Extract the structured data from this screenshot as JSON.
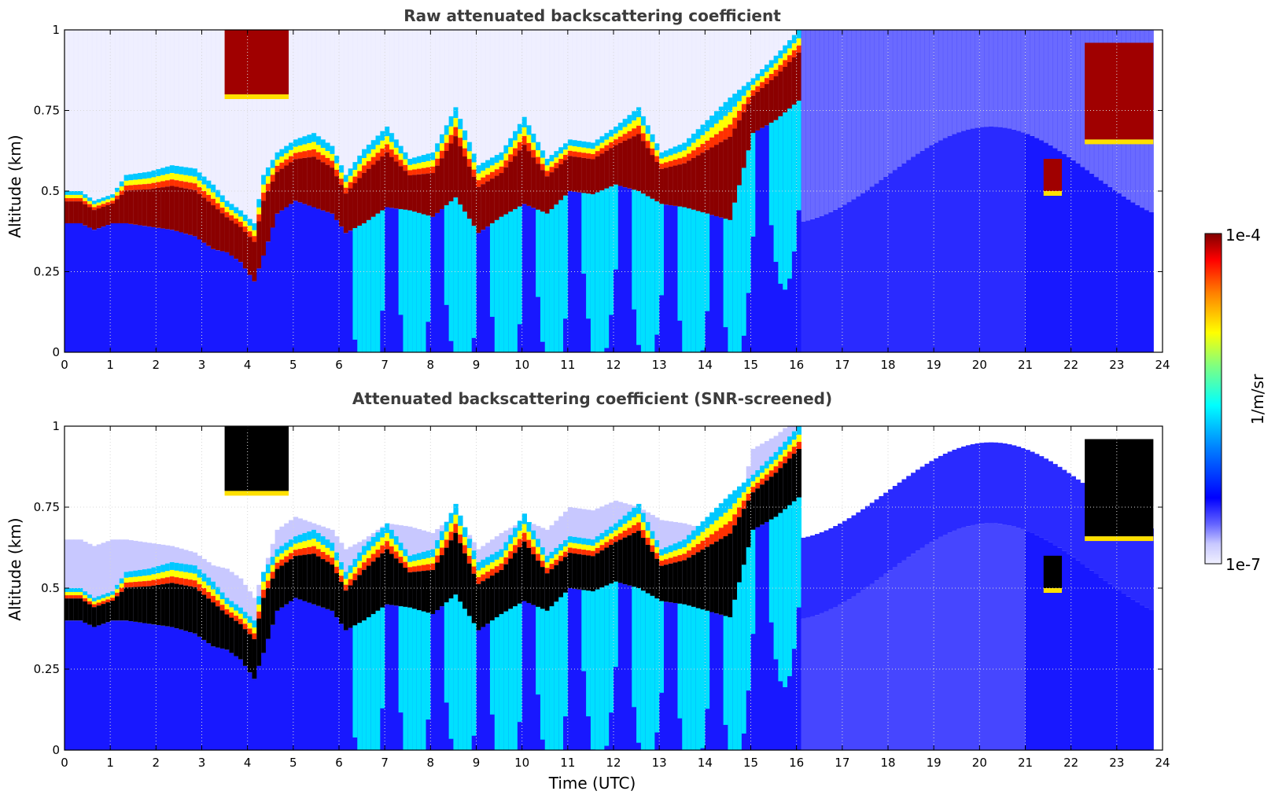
{
  "chart_data": [
    {
      "type": "heatmap",
      "title": "Raw attenuated backscattering coefficient",
      "xlabel": "",
      "ylabel": "Altitude (km)",
      "xlim": [
        0,
        24
      ],
      "ylim": [
        0,
        1
      ],
      "xticks": [
        "0",
        "1",
        "2",
        "3",
        "4",
        "5",
        "6",
        "7",
        "8",
        "9",
        "10",
        "11",
        "12",
        "13",
        "14",
        "15",
        "16",
        "17",
        "18",
        "19",
        "20",
        "21",
        "22",
        "23",
        "24"
      ],
      "yticks": [
        "0",
        "0.25",
        "0.5",
        "0.75",
        "1"
      ],
      "grid": true,
      "screened": false,
      "cloud_layer": {
        "time_utc": [
          0.3,
          0.6,
          1.0,
          1.3,
          1.8,
          2.3,
          2.8,
          3.2,
          3.5,
          3.8,
          4.1,
          4.3,
          4.6,
          5.0,
          5.4,
          5.8,
          6.1,
          6.5,
          7.0,
          7.5,
          8.0,
          8.5,
          9.0,
          9.5,
          10.0,
          10.5,
          11.0,
          11.5,
          12.0,
          12.5,
          13.0,
          13.5,
          14.0,
          14.5,
          15.0,
          15.5,
          16.0
        ],
        "base_km": [
          0.4,
          0.38,
          0.4,
          0.4,
          0.39,
          0.38,
          0.36,
          0.32,
          0.31,
          0.28,
          0.22,
          0.3,
          0.43,
          0.47,
          0.45,
          0.43,
          0.37,
          0.4,
          0.45,
          0.44,
          0.42,
          0.48,
          0.37,
          0.42,
          0.46,
          0.43,
          0.5,
          0.49,
          0.52,
          0.5,
          0.46,
          0.45,
          0.43,
          0.41,
          0.68,
          0.72,
          0.78
        ],
        "top_km": [
          0.5,
          0.47,
          0.49,
          0.55,
          0.56,
          0.58,
          0.57,
          0.52,
          0.47,
          0.44,
          0.4,
          0.55,
          0.62,
          0.66,
          0.68,
          0.64,
          0.55,
          0.63,
          0.7,
          0.6,
          0.62,
          0.76,
          0.58,
          0.62,
          0.73,
          0.6,
          0.66,
          0.65,
          0.7,
          0.76,
          0.62,
          0.65,
          0.72,
          0.79,
          0.85,
          0.92,
          1.0
        ]
      },
      "upper_layers": [
        {
          "start": 3.5,
          "end": 4.9,
          "base_km": 0.8,
          "top_km": 1.0
        },
        {
          "start": 21.4,
          "end": 21.8,
          "base_km": 0.5,
          "top_km": 0.6
        },
        {
          "start": 22.3,
          "end": 23.8,
          "base_km": 0.66,
          "top_km": 0.96
        }
      ],
      "data_end_utc": 23.75
    },
    {
      "type": "heatmap",
      "title": "Attenuated backscattering coefficient (SNR-screened)",
      "xlabel": "Time (UTC)",
      "ylabel": "Altitude (km)",
      "xlim": [
        0,
        24
      ],
      "ylim": [
        0,
        1
      ],
      "xticks": [
        "0",
        "1",
        "2",
        "3",
        "4",
        "5",
        "6",
        "7",
        "8",
        "9",
        "10",
        "11",
        "12",
        "13",
        "14",
        "15",
        "16",
        "17",
        "18",
        "19",
        "20",
        "21",
        "22",
        "23",
        "24"
      ],
      "yticks": [
        "0",
        "0.25",
        "0.5",
        "0.75",
        "1"
      ],
      "grid": true,
      "screened": true,
      "cloud_layer_ref": 0,
      "data_end_utc": 23.75
    }
  ],
  "colorbar": {
    "label": "1/m/sr",
    "min_label": "1e-7",
    "max_label": "1e-4",
    "colormap": "jet",
    "low_color": "#e8e8ff"
  }
}
